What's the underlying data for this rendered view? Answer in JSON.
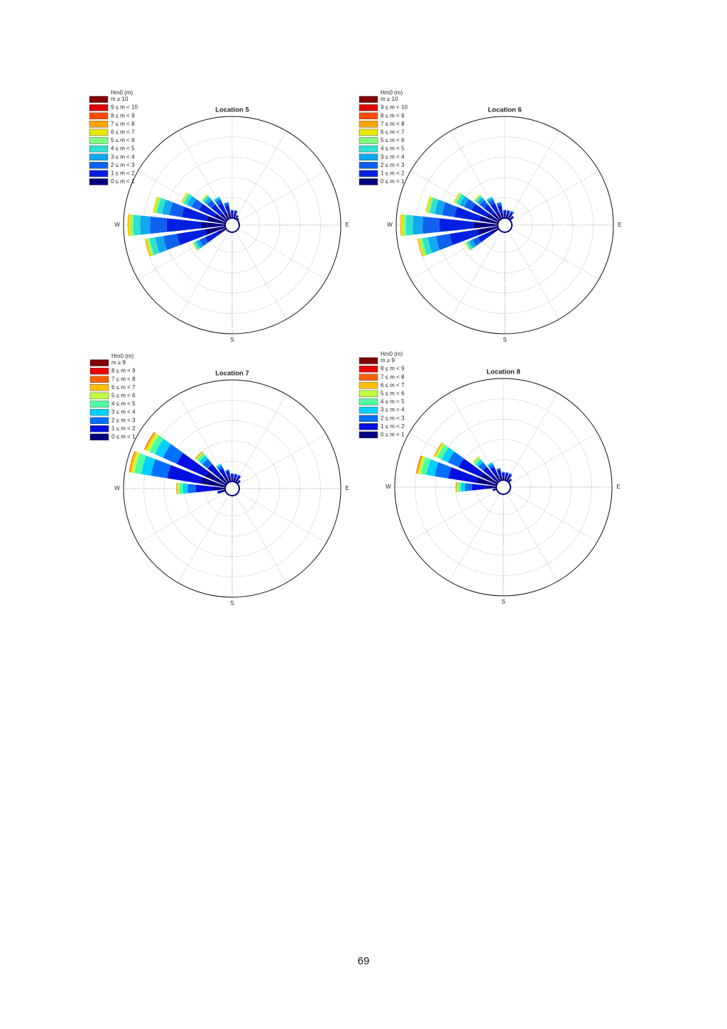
{
  "chart_data": [
    {
      "type": "rose",
      "title": "Location 5",
      "legend_title": "Hm0 (m)",
      "x": [
        240,
        255,
        270,
        285,
        300,
        315,
        330,
        345,
        0,
        15,
        30,
        45
      ],
      "xticks": [
        {
          "value": 90,
          "label": "E"
        },
        {
          "value": 180,
          "label": "S"
        },
        {
          "value": 270,
          "label": "W"
        }
      ],
      "rlim": [
        0,
        25
      ],
      "rticks": [
        5,
        10,
        15,
        20,
        25
      ],
      "grid": true,
      "series": [
        {
          "name": "m ≥ 10",
          "color": "#800000",
          "values": [
            0,
            0,
            0,
            0,
            0,
            0,
            0,
            0,
            0,
            0,
            0,
            0
          ]
        },
        {
          "name": "9 ≤ m < 10",
          "color": "#dd0000",
          "values": [
            0,
            0,
            0,
            0,
            0,
            0,
            0,
            0,
            0,
            0,
            0,
            0
          ]
        },
        {
          "name": "8 ≤ m < 9",
          "color": "#ff4a00",
          "values": [
            0,
            0,
            0,
            0,
            0,
            0,
            0,
            0,
            0,
            0,
            0,
            0
          ]
        },
        {
          "name": "7 ≤ m < 8",
          "color": "#ffa500",
          "values": [
            0,
            0.2,
            0.2,
            0.1,
            0.1,
            0,
            0,
            0,
            0,
            0,
            0,
            0
          ]
        },
        {
          "name": "6 ≤ m < 7",
          "color": "#e8e800",
          "values": [
            0.2,
            0.4,
            0.5,
            0.4,
            0.2,
            0.2,
            0,
            0,
            0,
            0,
            0,
            0
          ]
        },
        {
          "name": "5 ≤ m < 6",
          "color": "#80ff80",
          "values": [
            0.3,
            0.6,
            0.7,
            0.5,
            0.4,
            0.2,
            0,
            0,
            0,
            0,
            0,
            0
          ]
        },
        {
          "name": "4 ≤ m < 5",
          "color": "#30e0d0",
          "values": [
            0.6,
            1.4,
            1.7,
            1.3,
            0.9,
            0.6,
            0.3,
            0,
            0,
            0,
            0,
            0
          ]
        },
        {
          "name": "3 ≤ m < 4",
          "color": "#10a8f0",
          "values": [
            0.9,
            2,
            2.4,
            1.8,
            1.2,
            0.8,
            0.5,
            0.2,
            0,
            0,
            0,
            0
          ]
        },
        {
          "name": "2 ≤ m < 3",
          "color": "#1060f0",
          "values": [
            1.5,
            3.4,
            4.1,
            3.1,
            2,
            1.4,
            1,
            0.6,
            0.2,
            0.2,
            0,
            0
          ]
        },
        {
          "name": "1 ≤ m < 2",
          "color": "#0020e0",
          "values": [
            3.2,
            7,
            8.4,
            6.3,
            4.2,
            2.8,
            2.4,
            1.8,
            0.8,
            0.8,
            0.3,
            0
          ]
        },
        {
          "name": "0 ≤ m < 1",
          "color": "#000080",
          "values": [
            2.3,
            5,
            6,
            4.5,
            3,
            2,
            1.8,
            1.4,
            1,
            1,
            0.7,
            0.5
          ]
        }
      ]
    },
    {
      "type": "rose",
      "title": "Location 6",
      "legend_title": "Hm0 (m)",
      "x": [
        240,
        255,
        270,
        285,
        300,
        315,
        330,
        345,
        0,
        15,
        30,
        45
      ],
      "xticks": [
        {
          "value": 90,
          "label": "E"
        },
        {
          "value": 180,
          "label": "S"
        },
        {
          "value": 270,
          "label": "W"
        }
      ],
      "rlim": [
        0,
        25
      ],
      "rticks": [
        5,
        10,
        15,
        20,
        25
      ],
      "grid": true,
      "series": [
        {
          "name": "m ≥ 10",
          "color": "#800000",
          "values": [
            0,
            0,
            0,
            0,
            0,
            0,
            0,
            0,
            0,
            0,
            0,
            0
          ]
        },
        {
          "name": "9 ≤ m < 10",
          "color": "#dd0000",
          "values": [
            0,
            0,
            0,
            0,
            0,
            0,
            0,
            0,
            0,
            0,
            0,
            0
          ]
        },
        {
          "name": "8 ≤ m < 9",
          "color": "#ff4a00",
          "values": [
            0,
            0,
            0,
            0,
            0,
            0,
            0,
            0,
            0,
            0,
            0,
            0
          ]
        },
        {
          "name": "7 ≤ m < 8",
          "color": "#ffa500",
          "values": [
            0,
            0.2,
            0.2,
            0.1,
            0.1,
            0,
            0,
            0,
            0,
            0,
            0,
            0
          ]
        },
        {
          "name": "6 ≤ m < 7",
          "color": "#e8e800",
          "values": [
            0.2,
            0.4,
            0.5,
            0.4,
            0.2,
            0.2,
            0,
            0,
            0,
            0,
            0,
            0
          ]
        },
        {
          "name": "5 ≤ m < 6",
          "color": "#80ff80",
          "values": [
            0.3,
            0.6,
            0.7,
            0.5,
            0.4,
            0.2,
            0,
            0,
            0,
            0,
            0,
            0
          ]
        },
        {
          "name": "4 ≤ m < 5",
          "color": "#30e0d0",
          "values": [
            0.6,
            1.4,
            1.7,
            1.3,
            0.9,
            0.6,
            0.3,
            0,
            0,
            0,
            0,
            0
          ]
        },
        {
          "name": "3 ≤ m < 4",
          "color": "#10a8f0",
          "values": [
            0.9,
            2,
            2.4,
            1.8,
            1.2,
            0.8,
            0.5,
            0.2,
            0,
            0,
            0,
            0
          ]
        },
        {
          "name": "2 ≤ m < 3",
          "color": "#1060f0",
          "values": [
            1.5,
            3.4,
            4.1,
            3.1,
            2,
            1.4,
            1,
            0.6,
            0.2,
            0.2,
            0.3,
            0
          ]
        },
        {
          "name": "1 ≤ m < 2",
          "color": "#0020e0",
          "values": [
            3.2,
            7,
            8.4,
            6.3,
            4.2,
            2.8,
            2.4,
            1.8,
            0.8,
            0.8,
            0.8,
            0.4
          ]
        },
        {
          "name": "0 ≤ m < 1",
          "color": "#000080",
          "values": [
            2.3,
            5,
            6,
            4.5,
            3,
            2,
            1.8,
            1.4,
            1,
            1,
            1,
            0.8
          ]
        }
      ]
    },
    {
      "type": "rose",
      "title": "Location 7",
      "legend_title": "Hm0 (m)",
      "x": [
        240,
        255,
        270,
        285,
        300,
        315,
        330,
        345,
        0,
        15,
        30,
        45
      ],
      "xticks": [
        {
          "value": 90,
          "label": "E"
        },
        {
          "value": 180,
          "label": "S"
        },
        {
          "value": 270,
          "label": "W"
        }
      ],
      "rlim": [
        0,
        25
      ],
      "rticks": [
        5,
        10,
        15,
        20,
        25
      ],
      "grid": true,
      "series": [
        {
          "name": "m ≥ 9",
          "color": "#800000",
          "values": [
            0,
            0,
            0,
            0,
            0,
            0,
            0,
            0,
            0,
            0,
            0,
            0
          ]
        },
        {
          "name": "8 ≤ m < 9",
          "color": "#ee0000",
          "values": [
            0,
            0,
            0,
            0,
            0,
            0,
            0,
            0,
            0,
            0,
            0,
            0
          ]
        },
        {
          "name": "7 ≤ m < 8",
          "color": "#ff6000",
          "values": [
            0,
            0,
            0.1,
            0.2,
            0.2,
            0.1,
            0,
            0,
            0,
            0,
            0,
            0
          ]
        },
        {
          "name": "6 ≤ m < 7",
          "color": "#ffc000",
          "values": [
            0,
            0,
            0.2,
            0.5,
            0.5,
            0.2,
            0,
            0,
            0,
            0,
            0,
            0
          ]
        },
        {
          "name": "5 ≤ m < 6",
          "color": "#c0ff40",
          "values": [
            0,
            0,
            0.4,
            0.7,
            0.7,
            0.3,
            0,
            0,
            0,
            0,
            0,
            0
          ]
        },
        {
          "name": "4 ≤ m < 5",
          "color": "#50ffa0",
          "values": [
            0,
            0,
            0.9,
            1.7,
            1.5,
            0.7,
            0.1,
            0,
            0,
            0,
            0,
            0
          ]
        },
        {
          "name": "3 ≤ m < 4",
          "color": "#00d0ff",
          "values": [
            0,
            0,
            1.2,
            2.4,
            2.2,
            1,
            0.4,
            0,
            0,
            0,
            0,
            0
          ]
        },
        {
          "name": "2 ≤ m < 3",
          "color": "#0070ff",
          "values": [
            0,
            0.2,
            2,
            4.1,
            3.7,
            1.7,
            0.8,
            0.4,
            0.2,
            0.2,
            0.2,
            0
          ]
        },
        {
          "name": "1 ≤ m < 2",
          "color": "#0010e0",
          "values": [
            0,
            0.8,
            4.2,
            8.4,
            7.7,
            3.5,
            2.1,
            1.4,
            0.8,
            0.8,
            0.8,
            0.3
          ]
        },
        {
          "name": "0 ≤ m < 1",
          "color": "#000080",
          "values": [
            0,
            1,
            3,
            6,
            5.5,
            2.5,
            1.6,
            1.2,
            1,
            1,
            1,
            0.7
          ]
        }
      ]
    },
    {
      "type": "rose",
      "title": "Location 8",
      "legend_title": "Hm0 (m)",
      "x": [
        240,
        255,
        270,
        285,
        300,
        315,
        330,
        345,
        0,
        15,
        30,
        45
      ],
      "xticks": [
        {
          "value": 90,
          "label": "E"
        },
        {
          "value": 180,
          "label": "S"
        },
        {
          "value": 270,
          "label": "W"
        }
      ],
      "rlim": [
        0,
        25
      ],
      "rticks": [
        5,
        10,
        15,
        20,
        25
      ],
      "grid": true,
      "series": [
        {
          "name": "m ≥ 9",
          "color": "#800000",
          "values": [
            0,
            0,
            0,
            0,
            0,
            0,
            0,
            0,
            0,
            0,
            0,
            0
          ]
        },
        {
          "name": "8 ≤ m < 9",
          "color": "#ee0000",
          "values": [
            0,
            0,
            0,
            0,
            0,
            0,
            0,
            0,
            0,
            0,
            0,
            0
          ]
        },
        {
          "name": "7 ≤ m < 8",
          "color": "#ff6000",
          "values": [
            0,
            0,
            0.1,
            0.2,
            0.1,
            0,
            0,
            0,
            0,
            0,
            0,
            0
          ]
        },
        {
          "name": "6 ≤ m < 7",
          "color": "#ffc000",
          "values": [
            0,
            0,
            0.2,
            0.4,
            0.3,
            0.2,
            0,
            0,
            0,
            0,
            0,
            0
          ]
        },
        {
          "name": "5 ≤ m < 6",
          "color": "#c0ff40",
          "values": [
            0,
            0,
            0.3,
            0.6,
            0.5,
            0.2,
            0,
            0,
            0,
            0,
            0,
            0
          ]
        },
        {
          "name": "4 ≤ m < 5",
          "color": "#50ffa0",
          "values": [
            0,
            0,
            0.7,
            1.4,
            1.2,
            0.6,
            0.1,
            0,
            0,
            0,
            0,
            0
          ]
        },
        {
          "name": "3 ≤ m < 4",
          "color": "#00d0ff",
          "values": [
            0,
            0,
            1,
            2,
            1.7,
            0.8,
            0.4,
            0,
            0,
            0,
            0,
            0
          ]
        },
        {
          "name": "2 ≤ m < 3",
          "color": "#0070ff",
          "values": [
            0,
            0,
            1.7,
            3.4,
            2.9,
            1.4,
            0.8,
            0.4,
            0.2,
            0.2,
            0.2,
            0
          ]
        },
        {
          "name": "1 ≤ m < 2",
          "color": "#0010e0",
          "values": [
            0,
            0.3,
            3.5,
            7,
            6,
            2.8,
            2.1,
            1.4,
            0.8,
            0.8,
            0.8,
            0.3
          ]
        },
        {
          "name": "0 ≤ m < 1",
          "color": "#000080",
          "values": [
            0,
            0.7,
            2.5,
            5,
            4.3,
            2,
            1.6,
            1.2,
            1,
            1,
            1,
            0.7
          ]
        }
      ]
    }
  ],
  "page_number": "69"
}
